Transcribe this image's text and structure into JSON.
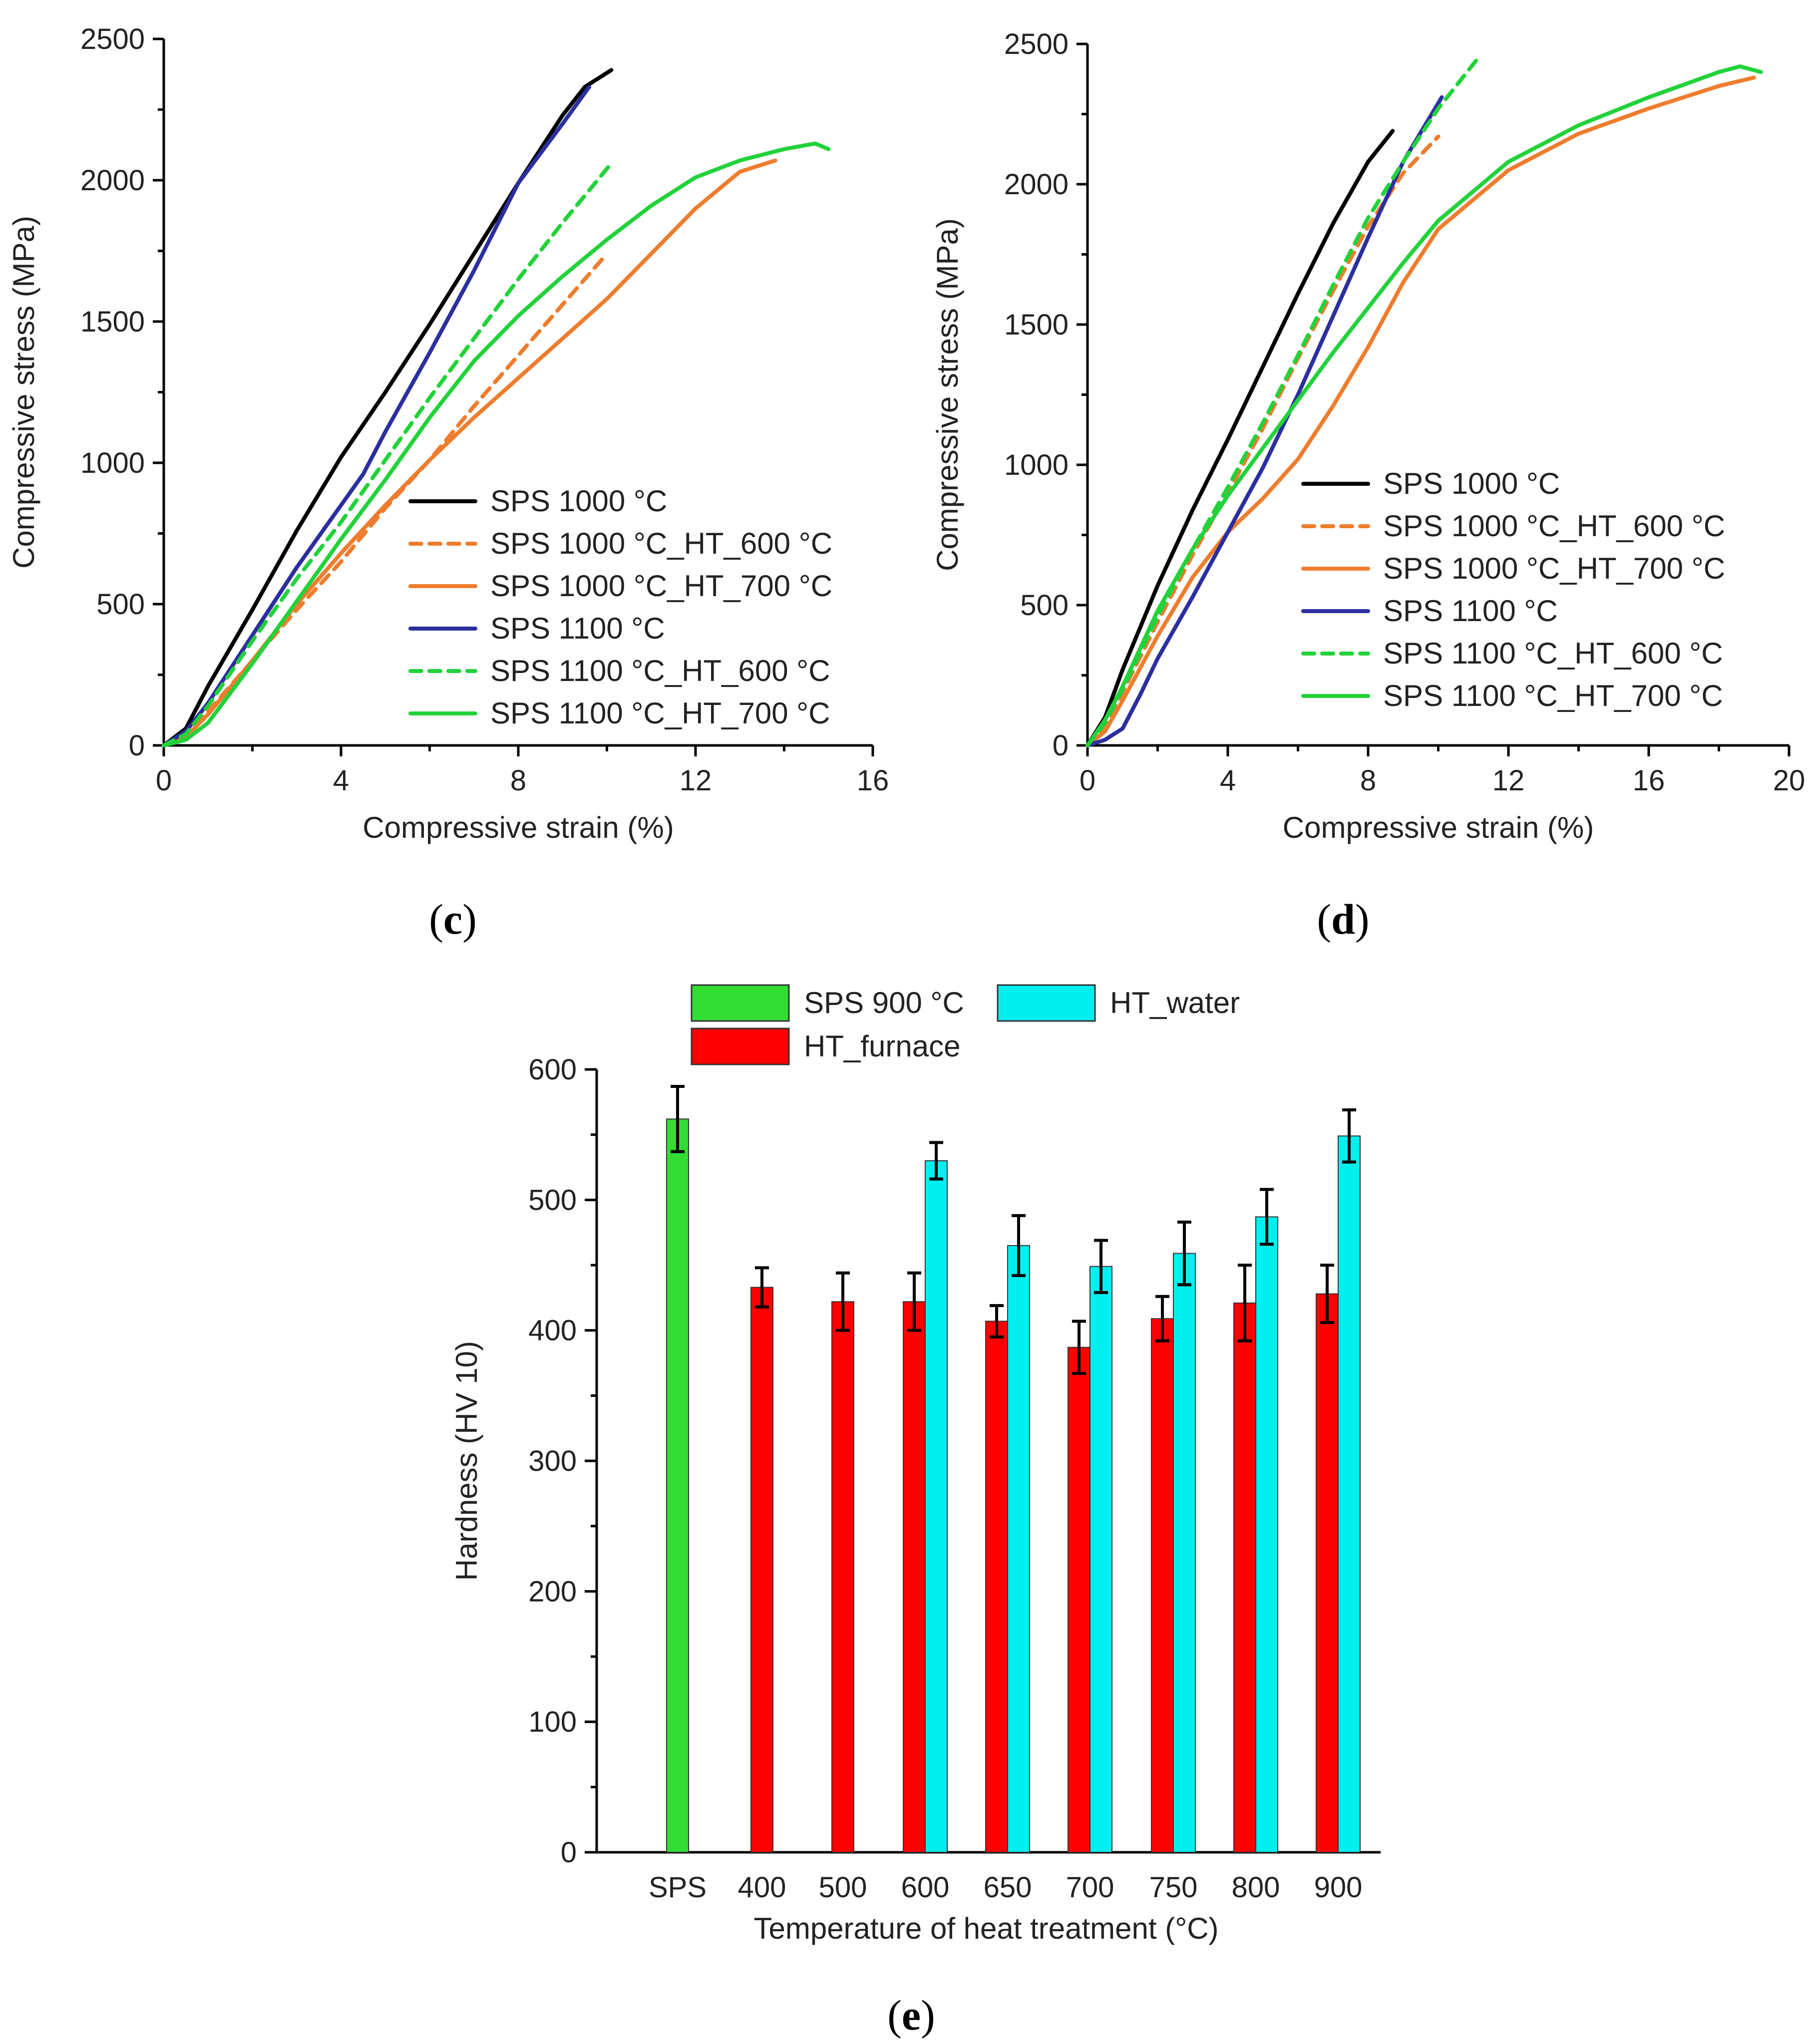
{
  "colors": {
    "black": "#000000",
    "orange": "#ee7d2e",
    "blue": "#2b2f9e",
    "green": "#22d23a",
    "red": "#ff0000",
    "cyan": "#00f0f0",
    "bar_green": "#33dd33"
  },
  "chart_data": [
    {
      "id": "c",
      "panel_label": "c",
      "type": "line",
      "xlabel": "Compressive strain (%)",
      "ylabel": "Compressive stress (MPa)",
      "xlim": [
        0,
        16
      ],
      "ylim": [
        0,
        2500
      ],
      "xticks": [
        0,
        4,
        8,
        12,
        16
      ],
      "yticks": [
        0,
        500,
        1000,
        1500,
        2000,
        2500
      ],
      "legend_position": "bottom-right",
      "series": [
        {
          "name": "SPS 1000 °C",
          "color": "black",
          "dash": false,
          "x": [
            0,
            0.5,
            1,
            2,
            3,
            4,
            5,
            6,
            7,
            8,
            9,
            9.5,
            10.1
          ],
          "y": [
            0,
            60,
            210,
            480,
            760,
            1020,
            1250,
            1490,
            1740,
            1990,
            2230,
            2330,
            2390
          ]
        },
        {
          "name": "SPS 1000 °C_HT_600 °C",
          "color": "orange",
          "dash": true,
          "x": [
            0,
            0.5,
            1,
            2,
            3,
            4,
            5,
            6,
            7,
            8,
            9,
            10
          ],
          "y": [
            0,
            40,
            120,
            300,
            480,
            650,
            840,
            1010,
            1200,
            1380,
            1560,
            1740
          ]
        },
        {
          "name": "SPS 1000 °C_HT_700 °C",
          "color": "orange",
          "dash": false,
          "x": [
            0,
            0.5,
            1,
            2,
            3,
            4,
            5,
            6,
            7,
            8,
            9,
            10,
            11,
            12,
            13,
            13.8
          ],
          "y": [
            0,
            30,
            110,
            300,
            500,
            680,
            850,
            1010,
            1160,
            1300,
            1440,
            1580,
            1740,
            1900,
            2030,
            2070
          ]
        },
        {
          "name": "SPS 1100 °C",
          "color": "blue",
          "dash": false,
          "x": [
            0,
            0.5,
            1,
            2,
            3,
            4,
            4.5,
            5,
            6,
            7,
            8,
            9,
            9.6
          ],
          "y": [
            0,
            50,
            150,
            390,
            630,
            850,
            960,
            1110,
            1390,
            1680,
            1990,
            2200,
            2330
          ]
        },
        {
          "name": "SPS 1100 °C_HT_600 °C",
          "color": "green",
          "dash": true,
          "x": [
            0,
            0.5,
            1,
            2,
            3,
            4,
            5,
            6,
            7,
            8,
            9,
            10.1
          ],
          "y": [
            0,
            40,
            140,
            370,
            590,
            790,
            1010,
            1230,
            1440,
            1650,
            1850,
            2060
          ]
        },
        {
          "name": "SPS 1100 °C_HT_700 °C",
          "color": "green",
          "dash": false,
          "x": [
            0,
            0.5,
            1,
            2,
            3,
            4,
            5,
            6,
            7,
            8,
            9,
            10,
            11,
            12,
            13,
            14,
            14.7,
            15
          ],
          "y": [
            0,
            20,
            80,
            290,
            510,
            730,
            940,
            1160,
            1360,
            1520,
            1660,
            1790,
            1910,
            2010,
            2070,
            2110,
            2130,
            2110
          ]
        }
      ]
    },
    {
      "id": "d",
      "panel_label": "d",
      "type": "line",
      "xlabel": "Compressive strain (%)",
      "ylabel": "Compressive stress (MPa)",
      "xlim": [
        0,
        20
      ],
      "ylim": [
        0,
        2500
      ],
      "xticks": [
        0,
        4,
        8,
        12,
        16,
        20
      ],
      "yticks": [
        0,
        500,
        1000,
        1500,
        2000,
        2500
      ],
      "legend_position": "bottom-right",
      "series": [
        {
          "name": "SPS 1000 °C",
          "color": "black",
          "dash": false,
          "x": [
            0,
            0.5,
            1,
            2,
            3,
            4,
            5,
            6,
            7,
            8,
            8.7
          ],
          "y": [
            0,
            100,
            270,
            570,
            840,
            1090,
            1350,
            1610,
            1860,
            2080,
            2190
          ]
        },
        {
          "name": "SPS 1000 °C_HT_600 °C",
          "color": "orange",
          "dash": true,
          "x": [
            0,
            0.5,
            1,
            2,
            3,
            4,
            5,
            6,
            7,
            8,
            9,
            10
          ],
          "y": [
            0,
            70,
            190,
            440,
            680,
            900,
            1130,
            1380,
            1620,
            1850,
            2040,
            2170
          ]
        },
        {
          "name": "SPS 1000 °C_HT_700 °C",
          "color": "orange",
          "dash": false,
          "x": [
            0,
            0.5,
            1,
            2,
            3,
            4,
            5,
            6,
            7,
            8,
            9,
            10,
            12,
            14,
            16,
            18,
            19
          ],
          "y": [
            0,
            50,
            160,
            390,
            600,
            760,
            880,
            1020,
            1210,
            1420,
            1650,
            1840,
            2050,
            2180,
            2270,
            2350,
            2380
          ]
        },
        {
          "name": "SPS 1100 °C",
          "color": "blue",
          "dash": false,
          "x": [
            0,
            0.5,
            1,
            1.5,
            2,
            3,
            4,
            5,
            6,
            7,
            8,
            9,
            10.1
          ],
          "y": [
            0,
            20,
            60,
            180,
            310,
            530,
            760,
            990,
            1250,
            1530,
            1810,
            2080,
            2310
          ]
        },
        {
          "name": "SPS 1100 °C_HT_600 °C",
          "color": "green",
          "dash": true,
          "x": [
            0,
            0.5,
            1,
            2,
            3,
            4,
            5,
            6,
            7,
            8,
            9,
            10,
            11.2
          ],
          "y": [
            0,
            80,
            200,
            460,
            700,
            920,
            1150,
            1390,
            1640,
            1880,
            2080,
            2270,
            2460
          ]
        },
        {
          "name": "SPS 1100 °C_HT_700 °C",
          "color": "green",
          "dash": false,
          "x": [
            0,
            0.5,
            1,
            2,
            3,
            4,
            5,
            6,
            7,
            8,
            9,
            10,
            12,
            14,
            16,
            18,
            18.6,
            19.2
          ],
          "y": [
            0,
            90,
            210,
            480,
            700,
            890,
            1060,
            1230,
            1400,
            1560,
            1720,
            1870,
            2080,
            2210,
            2310,
            2400,
            2420,
            2400
          ]
        }
      ]
    },
    {
      "id": "e",
      "panel_label": "e",
      "type": "bar",
      "xlabel": "Temperature of heat treatment (°C)",
      "ylabel": "Hardness (HV 10)",
      "ylim": [
        0,
        600
      ],
      "yticks": [
        0,
        100,
        200,
        300,
        400,
        500,
        600
      ],
      "legend_position": "top-center",
      "categories": [
        "SPS",
        "400",
        "500",
        "600",
        "650",
        "700",
        "750",
        "800",
        "900"
      ],
      "series": [
        {
          "name": "SPS 900 °C",
          "color": "bar_green",
          "values": [
            562,
            null,
            null,
            null,
            null,
            null,
            null,
            null,
            null
          ],
          "errors": [
            25,
            null,
            null,
            null,
            null,
            null,
            null,
            null,
            null
          ]
        },
        {
          "name": "HT_furnace",
          "color": "red",
          "values": [
            null,
            433,
            422,
            422,
            407,
            387,
            409,
            421,
            428
          ],
          "errors": [
            null,
            15,
            22,
            22,
            12,
            20,
            17,
            29,
            22
          ]
        },
        {
          "name": "HT_water",
          "color": "cyan",
          "values": [
            null,
            null,
            null,
            530,
            465,
            449,
            459,
            487,
            549
          ],
          "errors": [
            null,
            null,
            null,
            14,
            23,
            20,
            24,
            21,
            20
          ]
        }
      ]
    }
  ]
}
